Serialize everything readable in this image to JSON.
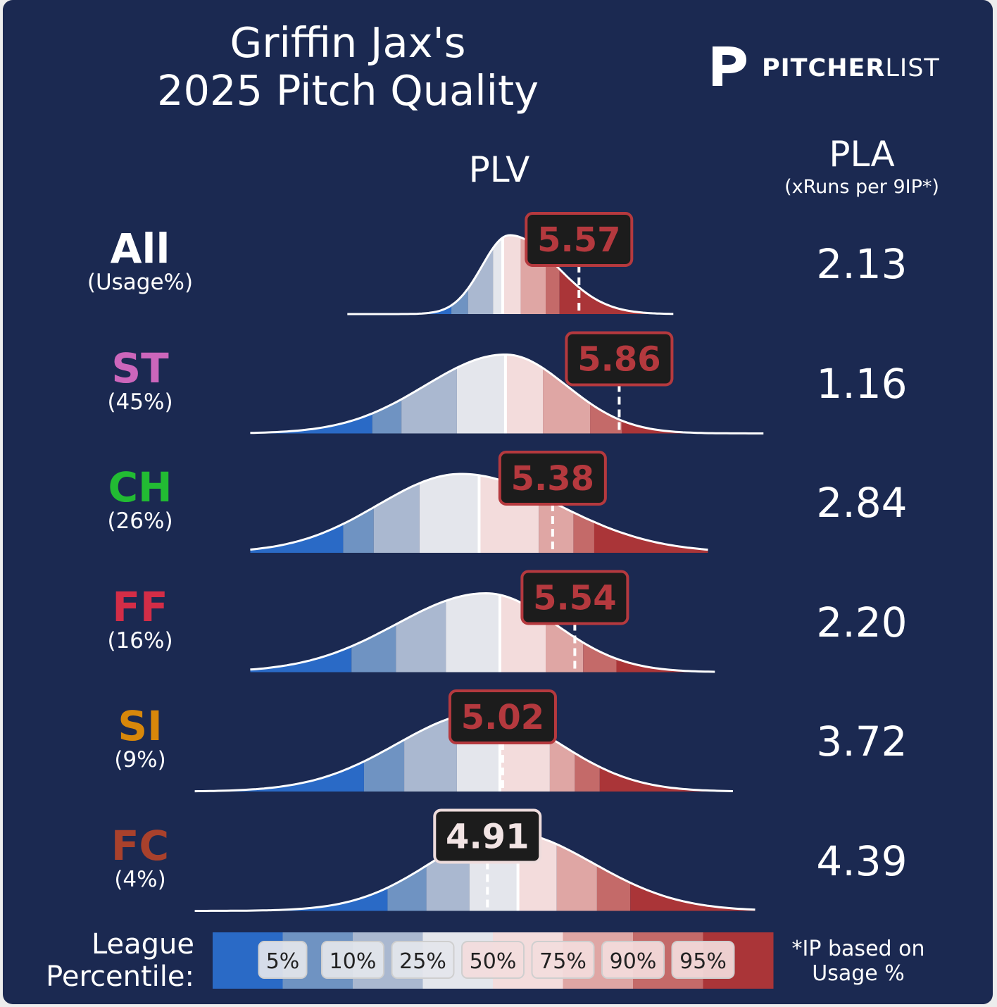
{
  "title": [
    "Griffin Jax's",
    "2025 Pitch Quality"
  ],
  "logo": {
    "text_bold": "PITCHER",
    "text_light": "LIST",
    "icon": "pitcherlist-p-logo-icon"
  },
  "headers": {
    "plv": "PLV",
    "pla": "PLA",
    "pla_sub": "(xRuns per 9IP*)"
  },
  "colors": {
    "background": "#1b2951",
    "bands": [
      "#2a6ac6",
      "#6f93c2",
      "#aab8d0",
      "#e4e6ec",
      "#f3dcdc",
      "#dfa6a4",
      "#c46a69",
      "#aa3538"
    ],
    "badge_above_median": "#b5393e",
    "badge_below_median": "#eedcdc"
  },
  "legend": {
    "title": [
      "League",
      "Percentile:"
    ],
    "labels": [
      "5%",
      "10%",
      "25%",
      "50%",
      "75%",
      "90%",
      "95%"
    ]
  },
  "footnote": [
    "*IP based on",
    "Usage %"
  ],
  "chart_data": {
    "type": "area",
    "x_axis_label": "PLV",
    "percentile_labels": [
      "5%",
      "10%",
      "25%",
      "50%",
      "75%",
      "90%",
      "95%"
    ],
    "rows": [
      {
        "name": "All",
        "usage": "(Usage%)",
        "color": "#ffffff",
        "plv": "5.57",
        "plv_value": 5.57,
        "pla": "2.13",
        "xrange": [
          3.9,
          6.25
        ],
        "peak_x": 5.07,
        "peak_y": 1.0,
        "sigma_left": 0.2,
        "sigma_right": 0.34,
        "percentiles": [
          4.65,
          4.77,
          4.95,
          5.02,
          5.15,
          5.33,
          5.43
        ]
      },
      {
        "name": "ST",
        "usage": "(45%)",
        "color": "#cc66bb",
        "plv": "5.86",
        "plv_value": 5.86,
        "pla": "1.16",
        "xrange": [
          3.2,
          6.9
        ],
        "peak_x": 5.04,
        "peak_y": 1.0,
        "sigma_left": 0.58,
        "sigma_right": 0.44,
        "percentiles": [
          4.08,
          4.29,
          4.69,
          5.04,
          5.31,
          5.65,
          5.88
        ]
      },
      {
        "name": "CH",
        "usage": "(26%)",
        "color": "#22bb33",
        "plv": "5.38",
        "plv_value": 5.38,
        "pla": "2.84",
        "xrange": [
          3.2,
          6.5
        ],
        "peak_x": 4.72,
        "peak_y": 1.0,
        "sigma_left": 0.6,
        "sigma_right": 0.7,
        "percentiles": [
          3.87,
          4.09,
          4.42,
          4.85,
          5.28,
          5.53,
          5.68
        ]
      },
      {
        "name": "FF",
        "usage": "(16%)",
        "color": "#d32d47",
        "plv": "5.54",
        "plv_value": 5.54,
        "pla": "2.20",
        "xrange": [
          3.2,
          6.55
        ],
        "peak_x": 4.9,
        "peak_y": 1.0,
        "sigma_left": 0.65,
        "sigma_right": 0.5,
        "percentiles": [
          3.93,
          4.25,
          4.61,
          5.0,
          5.33,
          5.6,
          5.84
        ]
      },
      {
        "name": "SI",
        "usage": "(9%)",
        "color": "#d8870a",
        "plv": "5.02",
        "plv_value": 5.02,
        "pla": "3.72",
        "xrange": [
          2.8,
          6.68
        ],
        "peak_x": 4.88,
        "peak_y": 1.0,
        "sigma_left": 0.62,
        "sigma_right": 0.55,
        "percentiles": [
          4.02,
          4.31,
          4.69,
          5.0,
          5.36,
          5.54,
          5.72
        ]
      },
      {
        "name": "FC",
        "usage": "(4%)",
        "color": "#a9412c",
        "plv": "4.91",
        "plv_value": 4.91,
        "pla": "4.39",
        "xrange": [
          2.8,
          6.84
        ],
        "peak_x": 5.05,
        "peak_y": 1.0,
        "sigma_left": 0.55,
        "sigma_right": 0.62,
        "percentiles": [
          4.19,
          4.47,
          4.78,
          5.13,
          5.41,
          5.7,
          5.94
        ]
      }
    ]
  }
}
